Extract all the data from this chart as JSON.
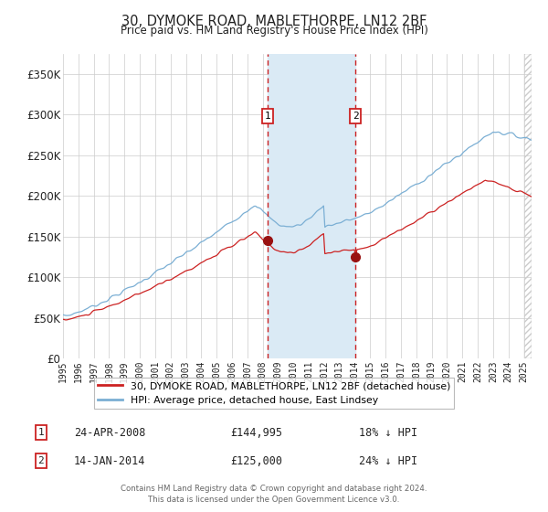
{
  "title": "30, DYMOKE ROAD, MABLETHORPE, LN12 2BF",
  "subtitle": "Price paid vs. HM Land Registry's House Price Index (HPI)",
  "legend_line1": "30, DYMOKE ROAD, MABLETHORPE, LN12 2BF (detached house)",
  "legend_line2": "HPI: Average price, detached house, East Lindsey",
  "transaction1_date": "24-APR-2008",
  "transaction1_price": "£144,995",
  "transaction1_hpi": "18% ↓ HPI",
  "transaction2_date": "14-JAN-2014",
  "transaction2_price": "£125,000",
  "transaction2_hpi": "24% ↓ HPI",
  "footer1": "Contains HM Land Registry data © Crown copyright and database right 2024.",
  "footer2": "This data is licensed under the Open Government Licence v3.0.",
  "hpi_color": "#7bafd4",
  "price_color": "#cc2222",
  "dot_color": "#991111",
  "shade_color": "#daeaf5",
  "dashed_color": "#cc2222",
  "bg_color": "#ffffff",
  "grid_color": "#cccccc",
  "ylim": [
    0,
    375000
  ],
  "t1_year": 2008.31,
  "t2_year": 2014.04,
  "t1_price": 144995,
  "t2_price": 125000
}
